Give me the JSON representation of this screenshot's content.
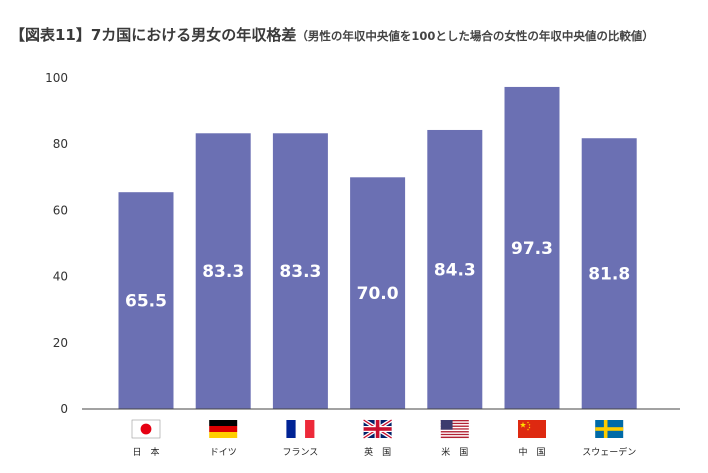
{
  "chart_data": {
    "type": "bar",
    "title": "【図表11】7カ国における男女の年収格差",
    "subtitle": "（男性の年収中央値を100とした場合の女性の年収中央値の比較値）",
    "categories": [
      "日　本",
      "ドイツ",
      "フランス",
      "英　国",
      "米　国",
      "中　国",
      "スウェーデン"
    ],
    "values": [
      65.5,
      83.3,
      83.3,
      70.0,
      84.3,
      97.3,
      81.8
    ],
    "value_labels": [
      "65.5",
      "83.3",
      "83.3",
      "70.0",
      "84.3",
      "97.3",
      "81.8"
    ],
    "flags": [
      "japan-flag-icon",
      "germany-flag-icon",
      "france-flag-icon",
      "uk-flag-icon",
      "usa-flag-icon",
      "china-flag-icon",
      "sweden-flag-icon"
    ],
    "ylim": [
      0,
      100
    ],
    "yticks": [
      0,
      20,
      40,
      60,
      80,
      100
    ],
    "xlabel": "",
    "ylabel": "",
    "grid": false,
    "legend": "none",
    "bar_color": "#6b70b3"
  }
}
